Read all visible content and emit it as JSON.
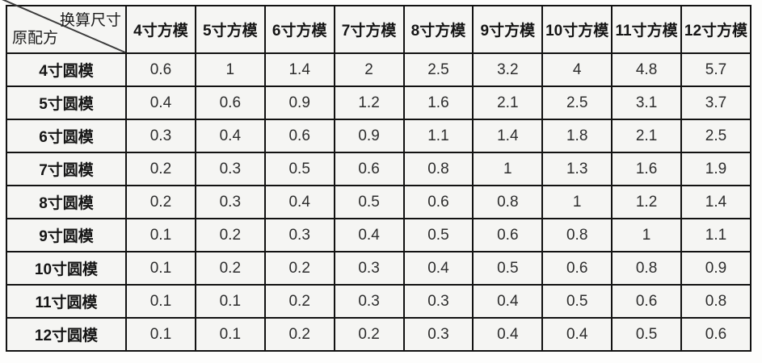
{
  "colors": {
    "border": "#121212",
    "cell_background": "#f5f5f3",
    "header_text": "#151515",
    "value_text": "#2d2d2d",
    "diagonal_line": "#3c3c3c"
  },
  "chart_data": {
    "type": "table",
    "corner_labels": {
      "top_right": "换算尺寸",
      "bottom_left": "原配方"
    },
    "column_headers": [
      "4寸方模",
      "5寸方模",
      "6寸方模",
      "7寸方模",
      "8寸方模",
      "9寸方模",
      "10寸方模",
      "11寸方模",
      "12寸方模"
    ],
    "rows": [
      {
        "label": "4寸圆模",
        "values": [
          0.6,
          1,
          1.4,
          2,
          2.5,
          3.2,
          4,
          4.8,
          5.7
        ]
      },
      {
        "label": "5寸圆模",
        "values": [
          0.4,
          0.6,
          0.9,
          1.2,
          1.6,
          2.1,
          2.5,
          3.1,
          3.7
        ]
      },
      {
        "label": "6寸圆模",
        "values": [
          0.3,
          0.4,
          0.6,
          0.9,
          1.1,
          1.4,
          1.8,
          2.1,
          2.5
        ]
      },
      {
        "label": "7寸圆模",
        "values": [
          0.2,
          0.3,
          0.5,
          0.6,
          0.8,
          1,
          1.3,
          1.6,
          1.9
        ]
      },
      {
        "label": "8寸圆模",
        "values": [
          0.2,
          0.3,
          0.4,
          0.5,
          0.6,
          0.8,
          1,
          1.2,
          1.4
        ]
      },
      {
        "label": "9寸圆模",
        "values": [
          0.1,
          0.2,
          0.3,
          0.4,
          0.5,
          0.6,
          0.8,
          1,
          1.1
        ]
      },
      {
        "label": "10寸圆模",
        "values": [
          0.1,
          0.2,
          0.2,
          0.3,
          0.4,
          0.5,
          0.6,
          0.8,
          0.9
        ]
      },
      {
        "label": "11寸圆模",
        "values": [
          0.1,
          0.1,
          0.2,
          0.3,
          0.3,
          0.4,
          0.5,
          0.6,
          0.8
        ]
      },
      {
        "label": "12寸圆模",
        "values": [
          0.1,
          0.1,
          0.2,
          0.2,
          0.3,
          0.4,
          0.4,
          0.5,
          0.6
        ]
      }
    ]
  }
}
